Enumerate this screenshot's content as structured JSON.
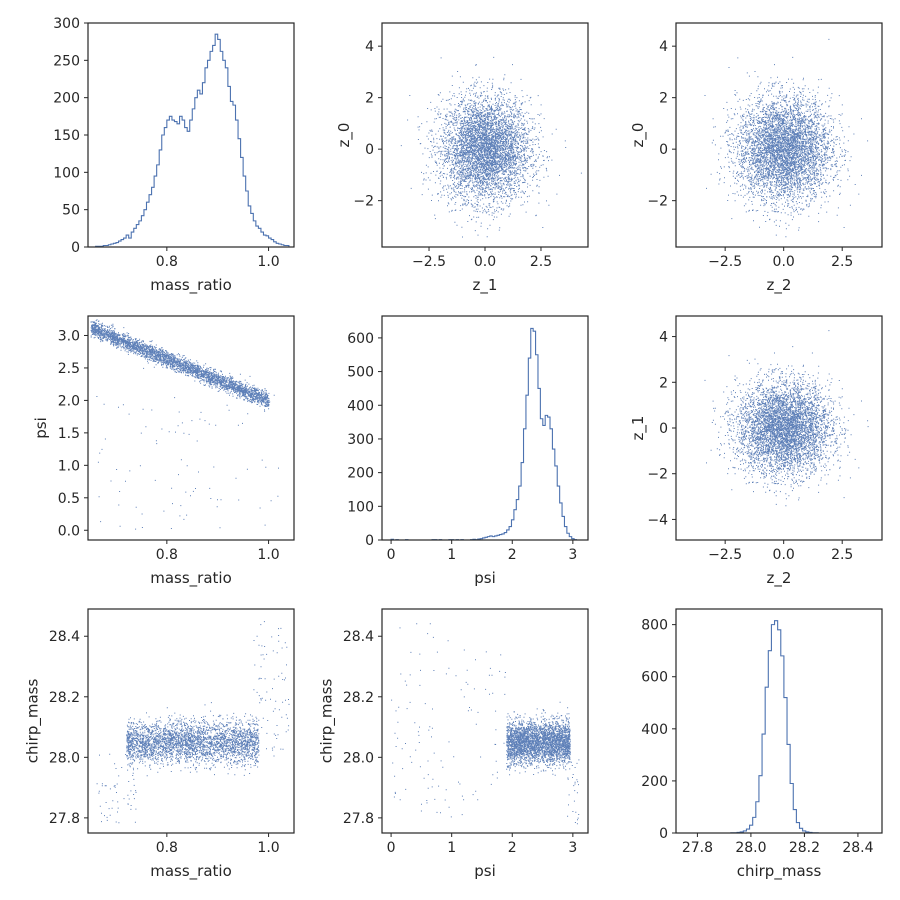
{
  "figure": {
    "style": {
      "line_color": "#4c72b0",
      "axis_color": "#262626",
      "background": "#ffffff"
    },
    "grid": false
  },
  "chart_data": [
    {
      "id": "mass_ratio-hist",
      "type": "histogram",
      "row": 0,
      "col": 0,
      "xlabel": "mass_ratio",
      "ylabel": "",
      "xlim": [
        0.645,
        1.05
      ],
      "ylim": [
        0,
        300
      ],
      "xticks": [
        {
          "v": 0.8,
          "label": "0.8"
        },
        {
          "v": 1.0,
          "label": "1.0"
        }
      ],
      "yticks": [
        {
          "v": 0,
          "label": "0"
        },
        {
          "v": 50,
          "label": "50"
        },
        {
          "v": 100,
          "label": "100"
        },
        {
          "v": 150,
          "label": "150"
        },
        {
          "v": 200,
          "label": "200"
        },
        {
          "v": 250,
          "label": "250"
        },
        {
          "v": 300,
          "label": "300"
        }
      ],
      "bin_range": [
        0.65,
        1.04
      ],
      "counts": [
        0,
        0,
        1,
        1,
        1,
        2,
        2,
        3,
        4,
        5,
        6,
        8,
        10,
        12,
        16,
        12,
        20,
        25,
        30,
        35,
        42,
        50,
        60,
        70,
        80,
        95,
        110,
        130,
        150,
        160,
        170,
        175,
        170,
        168,
        165,
        175,
        170,
        160,
        155,
        170,
        185,
        200,
        210,
        205,
        220,
        240,
        250,
        262,
        270,
        285,
        278,
        262,
        250,
        240,
        215,
        195,
        190,
        170,
        145,
        120,
        95,
        75,
        55,
        45,
        35,
        28,
        25,
        20,
        16,
        15,
        12,
        10,
        7,
        5,
        4,
        3,
        2,
        2
      ]
    },
    {
      "id": "z1-z0-scatter",
      "type": "scatter_cloud",
      "row": 0,
      "col": 1,
      "xlabel": "z_1",
      "ylabel": "z_0",
      "xlim": [
        -4.6,
        4.6
      ],
      "ylim": [
        -3.8,
        4.9
      ],
      "xticks": [
        {
          "v": -2.5,
          "label": "−2.5"
        },
        {
          "v": 0,
          "label": "0.0"
        },
        {
          "v": 2.5,
          "label": "2.5"
        }
      ],
      "yticks": [
        {
          "v": -2,
          "label": "−2"
        },
        {
          "v": 0,
          "label": "0"
        },
        {
          "v": 2,
          "label": "2"
        },
        {
          "v": 4,
          "label": "4"
        }
      ],
      "distribution": {
        "mean": [
          0,
          0
        ],
        "std": [
          1,
          1
        ],
        "n": 5000
      }
    },
    {
      "id": "z2-z0-scatter",
      "type": "scatter_cloud",
      "row": 0,
      "col": 2,
      "xlabel": "z_2",
      "ylabel": "z_0",
      "xlim": [
        -4.6,
        4.2
      ],
      "ylim": [
        -3.8,
        4.9
      ],
      "xticks": [
        {
          "v": -2.5,
          "label": "−2.5"
        },
        {
          "v": 0,
          "label": "0.0"
        },
        {
          "v": 2.5,
          "label": "2.5"
        }
      ],
      "yticks": [
        {
          "v": -2,
          "label": "−2"
        },
        {
          "v": 0,
          "label": "0"
        },
        {
          "v": 2,
          "label": "2"
        },
        {
          "v": 4,
          "label": "4"
        }
      ],
      "distribution": {
        "mean": [
          0,
          0
        ],
        "std": [
          1,
          1
        ],
        "n": 5000
      }
    },
    {
      "id": "mass_ratio-psi-scatter",
      "type": "scatter_band",
      "row": 1,
      "col": 0,
      "xlabel": "mass_ratio",
      "ylabel": "psi",
      "xlim": [
        0.645,
        1.05
      ],
      "ylim": [
        -0.15,
        3.3
      ],
      "xticks": [
        {
          "v": 0.8,
          "label": "0.8"
        },
        {
          "v": 1.0,
          "label": "1.0"
        }
      ],
      "yticks": [
        {
          "v": 0.0,
          "label": "0.0"
        },
        {
          "v": 0.5,
          "label": "0.5"
        },
        {
          "v": 1.0,
          "label": "1.0"
        },
        {
          "v": 1.5,
          "label": "1.5"
        },
        {
          "v": 2.0,
          "label": "2.0"
        },
        {
          "v": 2.5,
          "label": "2.5"
        },
        {
          "v": 3.0,
          "label": "3.0"
        }
      ],
      "band": {
        "x_range": [
          0.65,
          1.0
        ],
        "y_at_x0": 3.12,
        "y_at_x1": 2.0,
        "width": 0.06,
        "n": 3500
      },
      "outliers": {
        "x_range": [
          0.66,
          1.03
        ],
        "y_range": [
          0.0,
          2.1
        ],
        "n": 90
      }
    },
    {
      "id": "psi-hist",
      "type": "histogram",
      "row": 1,
      "col": 1,
      "xlabel": "psi",
      "ylabel": "",
      "xlim": [
        -0.15,
        3.25
      ],
      "ylim": [
        0,
        665
      ],
      "xticks": [
        {
          "v": 0,
          "label": "0"
        },
        {
          "v": 1,
          "label": "1"
        },
        {
          "v": 2,
          "label": "2"
        },
        {
          "v": 3,
          "label": "3"
        }
      ],
      "yticks": [
        {
          "v": 0,
          "label": "0"
        },
        {
          "v": 100,
          "label": "100"
        },
        {
          "v": 200,
          "label": "200"
        },
        {
          "v": 300,
          "label": "300"
        },
        {
          "v": 400,
          "label": "400"
        },
        {
          "v": 500,
          "label": "500"
        },
        {
          "v": 600,
          "label": "600"
        }
      ],
      "bin_range": [
        0.0,
        3.1
      ],
      "counts": [
        2,
        0,
        1,
        0,
        0,
        0,
        1,
        0,
        0,
        0,
        0,
        0,
        0,
        0,
        0,
        0,
        0,
        1,
        1,
        0,
        1,
        0,
        0,
        0,
        1,
        1,
        0,
        1,
        0,
        1,
        0,
        0,
        0,
        1,
        2,
        1,
        3,
        4,
        6,
        8,
        10,
        12,
        10,
        12,
        14,
        16,
        18,
        22,
        30,
        40,
        60,
        90,
        120,
        160,
        230,
        330,
        430,
        540,
        628,
        620,
        550,
        450,
        360,
        340,
        370,
        365,
        330,
        270,
        220,
        160,
        110,
        70,
        40,
        20,
        10,
        4,
        1,
        0
      ]
    },
    {
      "id": "z2-z1-scatter",
      "type": "scatter_cloud",
      "row": 1,
      "col": 2,
      "xlabel": "z_2",
      "ylabel": "z_1",
      "xlim": [
        -4.6,
        4.2
      ],
      "ylim": [
        -4.9,
        4.9
      ],
      "xticks": [
        {
          "v": -2.5,
          "label": "−2.5"
        },
        {
          "v": 0,
          "label": "0.0"
        },
        {
          "v": 2.5,
          "label": "2.5"
        }
      ],
      "yticks": [
        {
          "v": -4,
          "label": "−4"
        },
        {
          "v": -2,
          "label": "−2"
        },
        {
          "v": 0,
          "label": "0"
        },
        {
          "v": 2,
          "label": "2"
        },
        {
          "v": 4,
          "label": "4"
        }
      ],
      "distribution": {
        "mean": [
          0,
          0
        ],
        "std": [
          1,
          1
        ],
        "n": 5000
      }
    },
    {
      "id": "mass_ratio-chirp_mass-scatter",
      "type": "scatter_curve",
      "row": 2,
      "col": 0,
      "xlabel": "mass_ratio",
      "ylabel": "chirp_mass",
      "xlim": [
        0.645,
        1.05
      ],
      "ylim": [
        27.75,
        28.49
      ],
      "xticks": [
        {
          "v": 0.8,
          "label": "0.8"
        },
        {
          "v": 1.0,
          "label": "1.0"
        }
      ],
      "yticks": [
        {
          "v": 27.8,
          "label": "27.8"
        },
        {
          "v": 28.0,
          "label": "28.0"
        },
        {
          "v": 28.2,
          "label": "28.2"
        },
        {
          "v": 28.4,
          "label": "28.4"
        }
      ],
      "main": {
        "x_range": [
          0.72,
          0.98
        ],
        "y_center": 28.05,
        "y_std": 0.035,
        "n": 3200
      },
      "tail_left": {
        "x_range": [
          0.66,
          0.74
        ],
        "y_range": [
          27.78,
          28.02
        ],
        "n": 60
      },
      "tail_right": {
        "x_range": [
          0.97,
          1.04
        ],
        "y_range": [
          28.0,
          28.45
        ],
        "n": 80
      }
    },
    {
      "id": "psi-chirp_mass-scatter",
      "type": "scatter_curve",
      "row": 2,
      "col": 1,
      "xlabel": "psi",
      "ylabel": "chirp_mass",
      "xlim": [
        -0.15,
        3.25
      ],
      "ylim": [
        27.75,
        28.49
      ],
      "xticks": [
        {
          "v": 0,
          "label": "0"
        },
        {
          "v": 1,
          "label": "1"
        },
        {
          "v": 2,
          "label": "2"
        },
        {
          "v": 3,
          "label": "3"
        }
      ],
      "yticks": [
        {
          "v": 27.8,
          "label": "27.8"
        },
        {
          "v": 28.0,
          "label": "28.0"
        },
        {
          "v": 28.2,
          "label": "28.2"
        },
        {
          "v": 28.4,
          "label": "28.4"
        }
      ],
      "main": {
        "x_range": [
          1.9,
          2.95
        ],
        "y_center": 28.05,
        "y_std": 0.035,
        "n": 3200
      },
      "tail_left": {
        "x_range": [
          0.0,
          1.9
        ],
        "y_range": [
          27.8,
          28.45
        ],
        "n": 120
      },
      "tail_right": {
        "x_range": [
          2.9,
          3.1
        ],
        "y_range": [
          27.78,
          28.0
        ],
        "n": 30
      }
    },
    {
      "id": "chirp_mass-hist",
      "type": "histogram",
      "row": 2,
      "col": 2,
      "xlabel": "chirp_mass",
      "ylabel": "",
      "xlim": [
        27.72,
        28.49
      ],
      "ylim": [
        0,
        860
      ],
      "xticks": [
        {
          "v": 27.8,
          "label": "27.8"
        },
        {
          "v": 28.0,
          "label": "28.0"
        },
        {
          "v": 28.2,
          "label": "28.2"
        },
        {
          "v": 28.4,
          "label": "28.4"
        }
      ],
      "yticks": [
        {
          "v": 0,
          "label": "0"
        },
        {
          "v": 200,
          "label": "200"
        },
        {
          "v": 400,
          "label": "400"
        },
        {
          "v": 600,
          "label": "600"
        },
        {
          "v": 800,
          "label": "800"
        }
      ],
      "bin_range": [
        27.75,
        28.45
      ],
      "counts": [
        0,
        0,
        0,
        0,
        0,
        0,
        0,
        0,
        0,
        0,
        0,
        0,
        0,
        0,
        0,
        1,
        1,
        2,
        4,
        8,
        15,
        30,
        60,
        120,
        220,
        380,
        560,
        700,
        800,
        815,
        780,
        680,
        520,
        340,
        190,
        90,
        40,
        18,
        8,
        4,
        2,
        1,
        1,
        0,
        0,
        0,
        0,
        0,
        0,
        0,
        0,
        0,
        0,
        0,
        0,
        0,
        0,
        0,
        0,
        0
      ]
    }
  ]
}
